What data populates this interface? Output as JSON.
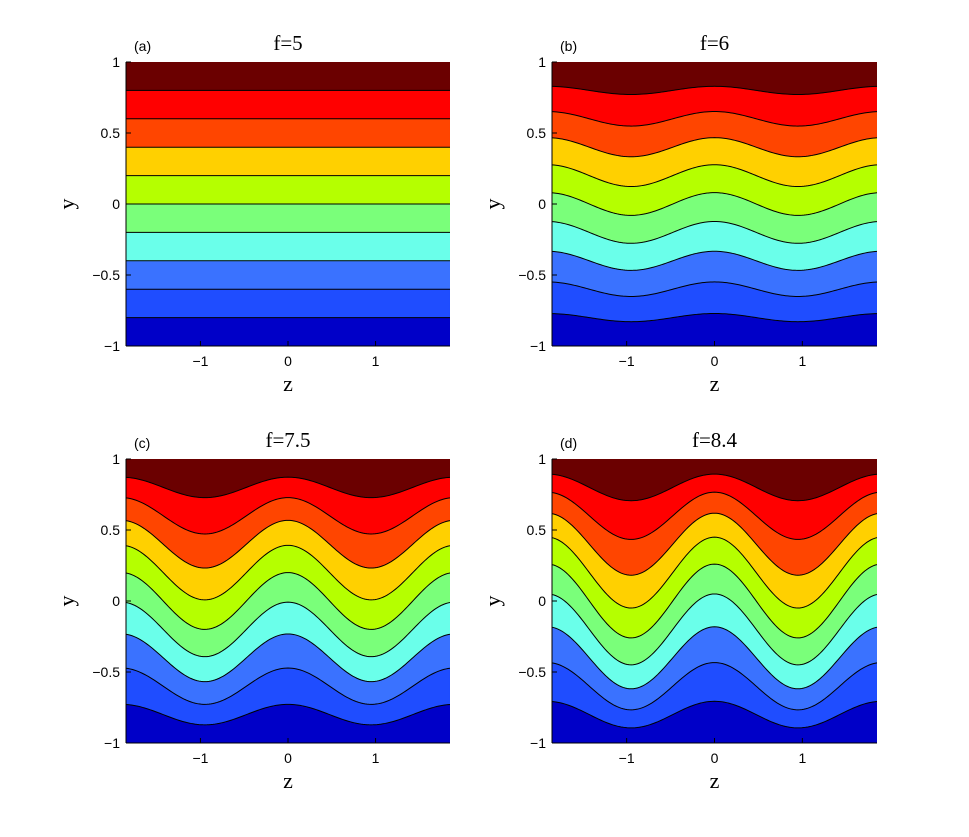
{
  "colors": {
    "level_fills": [
      "#0000c8",
      "#1f4dff",
      "#3a72ff",
      "#6affea",
      "#7aff7a",
      "#b5ff00",
      "#ffd000",
      "#ff4500",
      "#ff0000",
      "#6b0000"
    ],
    "contour_line": "#000000",
    "axis": "#000000"
  },
  "chart_data": [
    {
      "type": "contour",
      "panel_label": "(a)",
      "title": "f=5",
      "xlabel": "z",
      "ylabel": "y",
      "xlim": [
        -1.85,
        1.85
      ],
      "ylim": [
        -1,
        1
      ],
      "xticks": [
        "−1",
        "0",
        "1"
      ],
      "xtick_values": [
        -1,
        0,
        1
      ],
      "yticks": [
        "1",
        "0.5",
        "0",
        "−0.5",
        "−1"
      ],
      "ytick_values": [
        1,
        0.5,
        0,
        -0.5,
        -1
      ],
      "contour_levels": [
        -0.8,
        -0.6,
        -0.4,
        -0.2,
        0,
        0.2,
        0.4,
        0.6,
        0.8
      ],
      "wave_amplitude": 0.0,
      "wave_period": 1.9
    },
    {
      "type": "contour",
      "panel_label": "(b)",
      "title": "f=6",
      "xlabel": "z",
      "ylabel": "y",
      "xlim": [
        -1.85,
        1.85
      ],
      "ylim": [
        -1,
        1
      ],
      "xticks": [
        "−1",
        "0",
        "1"
      ],
      "xtick_values": [
        -1,
        0,
        1
      ],
      "yticks": [
        "1",
        "0.5",
        "0",
        "−0.5",
        "−1"
      ],
      "ytick_values": [
        1,
        0.5,
        0,
        -0.5,
        -1
      ],
      "contour_levels": [
        -0.8,
        -0.6,
        -0.4,
        -0.2,
        0,
        0.2,
        0.4,
        0.6,
        0.8
      ],
      "wave_amplitude": 0.08,
      "wave_period": 1.9
    },
    {
      "type": "contour",
      "panel_label": "(c)",
      "title": "f=7.5",
      "xlabel": "z",
      "ylabel": "y",
      "xlim": [
        -1.85,
        1.85
      ],
      "ylim": [
        -1,
        1
      ],
      "xticks": [
        "−1",
        "0",
        "1"
      ],
      "xtick_values": [
        -1,
        0,
        1
      ],
      "yticks": [
        "1",
        "0.5",
        "0",
        "−0.5",
        "−1"
      ],
      "ytick_values": [
        1,
        0.5,
        0,
        -0.5,
        -1
      ],
      "contour_levels": [
        -0.8,
        -0.6,
        -0.4,
        -0.2,
        0,
        0.2,
        0.4,
        0.6,
        0.8
      ],
      "wave_amplitude": 0.2,
      "wave_period": 1.9
    },
    {
      "type": "contour",
      "panel_label": "(d)",
      "title": "f=8.4",
      "xlabel": "z",
      "ylabel": "y",
      "xlim": [
        -1.85,
        1.85
      ],
      "ylim": [
        -1,
        1
      ],
      "xticks": [
        "−1",
        "0",
        "1"
      ],
      "xtick_values": [
        -1,
        0,
        1
      ],
      "yticks": [
        "1",
        "0.5",
        "0",
        "−0.5",
        "−1"
      ],
      "ytick_values": [
        1,
        0.5,
        0,
        -0.5,
        -1
      ],
      "contour_levels": [
        -0.8,
        -0.6,
        -0.4,
        -0.2,
        0,
        0.2,
        0.4,
        0.6,
        0.8
      ],
      "wave_amplitude": 0.26,
      "wave_period": 1.9
    }
  ]
}
